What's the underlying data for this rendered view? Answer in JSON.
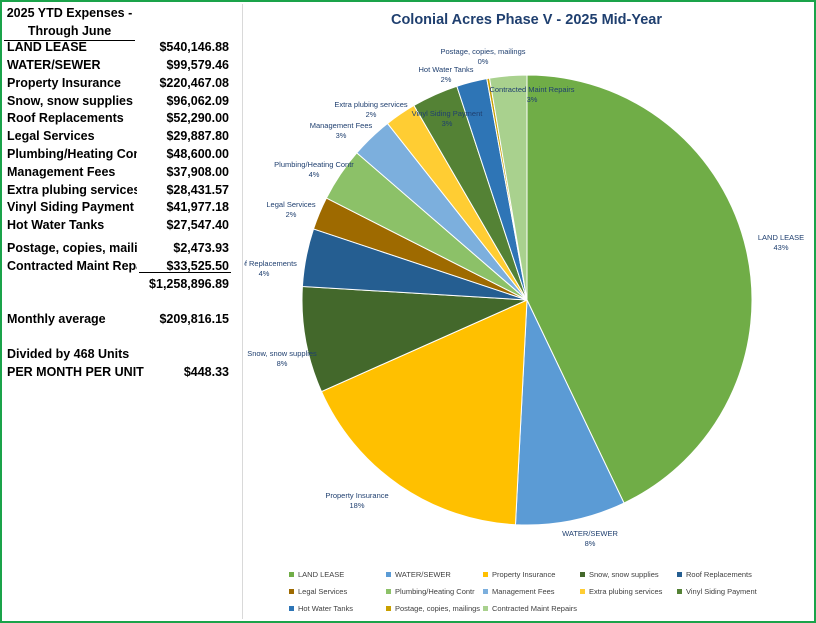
{
  "sheet": {
    "header_line1": "2025 YTD Expenses -",
    "header_line2": "Through June",
    "rows": [
      {
        "label": "LAND LEASE",
        "amount": "$540,146.88"
      },
      {
        "label": "WATER/SEWER",
        "amount": "$99,579.46"
      },
      {
        "label": "Property Insurance",
        "amount": "$220,467.08"
      },
      {
        "label": "Snow, snow supplies",
        "amount": "$96,062.09"
      },
      {
        "label": "Roof Replacements",
        "amount": "$52,290.00"
      },
      {
        "label": "Legal Services",
        "amount": "$29,887.80"
      },
      {
        "label": "Plumbing/Heating Contr",
        "amount": "$48,600.00"
      },
      {
        "label": "Management Fees",
        "amount": "$37,908.00"
      },
      {
        "label": "Extra plubing services",
        "amount": "$28,431.57"
      },
      {
        "label": "Vinyl Siding Payment",
        "amount": "$41,977.18"
      },
      {
        "label": "Hot Water Tanks",
        "amount": "$27,547.40"
      },
      {
        "label": "Postage, copies, mailings",
        "amount": "$2,473.93"
      },
      {
        "label": "Contracted Maint Repairs",
        "amount": "$33,525.50"
      }
    ],
    "total": "$1,258,896.89",
    "monthly_label": "Monthly average",
    "monthly_value": "$209,816.15",
    "divided_label": "Divided by 468 Units",
    "per_unit_label": "PER MONTH PER UNIT",
    "per_unit_value": "$448.33"
  },
  "chart_data": {
    "type": "pie",
    "title": "Colonial Acres Phase V - 2025 Mid-Year",
    "legend_position": "bottom",
    "slices": [
      {
        "label": "LAND LEASE",
        "value": 540146.88,
        "pct_label": "43%",
        "color": "#70ad47"
      },
      {
        "label": "WATER/SEWER",
        "value": 99579.46,
        "pct_label": "8%",
        "color": "#5b9bd5"
      },
      {
        "label": "Property Insurance",
        "value": 220467.08,
        "pct_label": "18%",
        "color": "#ffc000"
      },
      {
        "label": "Snow, snow supplies",
        "value": 96062.09,
        "pct_label": "8%",
        "color": "#43682b"
      },
      {
        "label": "Roof Replacements",
        "value": 52290.0,
        "pct_label": "4%",
        "color": "#255e91"
      },
      {
        "label": "Legal Services",
        "value": 29887.8,
        "pct_label": "2%",
        "color": "#9e6a00"
      },
      {
        "label": "Plumbing/Heating Contr",
        "value": 48600.0,
        "pct_label": "4%",
        "color": "#8cc168"
      },
      {
        "label": "Management Fees",
        "value": 37908.0,
        "pct_label": "3%",
        "color": "#7cafdd"
      },
      {
        "label": "Extra plubing services",
        "value": 28431.57,
        "pct_label": "2%",
        "color": "#ffcd33"
      },
      {
        "label": "Vinyl Siding Payment",
        "value": 41977.18,
        "pct_label": "3%",
        "color": "#548235"
      },
      {
        "label": "Hot Water Tanks",
        "value": 27547.4,
        "pct_label": "2%",
        "color": "#2e75b6"
      },
      {
        "label": "Postage, copies, mailings",
        "value": 2473.93,
        "pct_label": "0%",
        "color": "#c9a000"
      },
      {
        "label": "Contracted Maint Repairs",
        "value": 33525.5,
        "pct_label": "3%",
        "color": "#a9d18e"
      }
    ]
  }
}
